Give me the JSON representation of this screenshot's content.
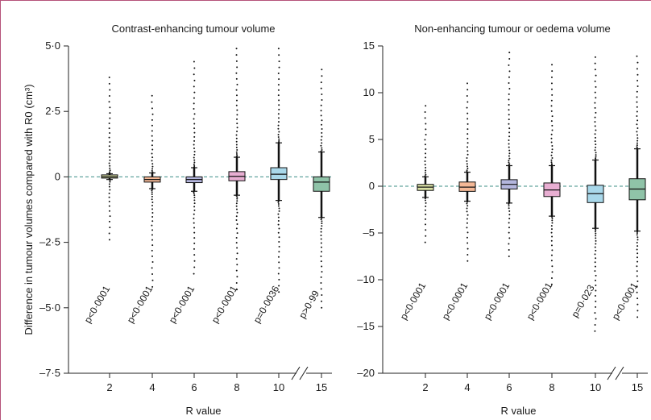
{
  "colors": {
    "frame": "#b5527a",
    "zero_line": "#3d8f86",
    "axis": "#222222",
    "outlier": "#111111"
  },
  "shared": {
    "ylabel": "Difference in tumour volumes compared with R0 (cm³)"
  },
  "chart_data": [
    {
      "type": "box",
      "title": "Contrast-enhancing tumour volume",
      "xlabel": "R value",
      "ylabel": "Difference in tumour volumes compared with R0 (cm³)",
      "ylim": [
        -7.5,
        5.0
      ],
      "yticks": [
        5.0,
        2.5,
        0,
        -2.5,
        -5.0,
        -7.5
      ],
      "ytick_labels": [
        "5·0",
        "2·5",
        "0",
        "–2·5",
        "–5·0",
        "–7·5"
      ],
      "reference_line": 0,
      "axis_break_between": [
        "10",
        "15"
      ],
      "categories": [
        "2",
        "4",
        "6",
        "8",
        "10",
        "15"
      ],
      "boxes": [
        {
          "x": "2",
          "q1": -0.03,
          "median": 0.0,
          "q3": 0.06,
          "whisker_low": -0.1,
          "whisker_high": 0.12,
          "outlier_low": -2.4,
          "outlier_high": 3.8,
          "color": "#d9e0a4",
          "p_value": "p<0·0001"
        },
        {
          "x": "4",
          "q1": -0.2,
          "median": -0.1,
          "q3": 0.0,
          "whisker_low": -0.45,
          "whisker_high": 0.15,
          "outlier_low": -4.2,
          "outlier_high": 3.1,
          "color": "#f4b896",
          "p_value": "p<0·0001"
        },
        {
          "x": "6",
          "q1": -0.22,
          "median": -0.1,
          "q3": 0.0,
          "whisker_low": -0.55,
          "whisker_high": 0.35,
          "outlier_low": -3.7,
          "outlier_high": 4.4,
          "color": "#b4b6dd",
          "p_value": "p<0·0001"
        },
        {
          "x": "8",
          "q1": -0.15,
          "median": 0.02,
          "q3": 0.2,
          "whisker_low": -0.7,
          "whisker_high": 0.75,
          "outlier_low": -4.3,
          "outlier_high": 4.9,
          "color": "#e8aed2",
          "p_value": "p<0·0001"
        },
        {
          "x": "10",
          "q1": -0.1,
          "median": 0.1,
          "q3": 0.35,
          "whisker_low": -0.9,
          "whisker_high": 1.3,
          "outlier_low": -4.4,
          "outlier_high": 4.9,
          "color": "#a9d8ea",
          "p_value": "p=0·0036"
        },
        {
          "x": "15",
          "q1": -0.55,
          "median": -0.2,
          "q3": 0.0,
          "whisker_low": -1.55,
          "whisker_high": 0.95,
          "outlier_low": -5.0,
          "outlier_high": 4.1,
          "color": "#8fc3a8",
          "p_value": "p>0·99"
        }
      ]
    },
    {
      "type": "box",
      "title": "Non-enhancing tumour or oedema volume",
      "xlabel": "R value",
      "ylabel": "",
      "ylim": [
        -20,
        15
      ],
      "yticks": [
        15,
        10,
        5,
        0,
        -5,
        -10,
        -15,
        -20
      ],
      "ytick_labels": [
        "15",
        "10",
        "5",
        "0",
        "–5",
        "–10",
        "–15",
        "–20"
      ],
      "reference_line": 0,
      "axis_break_between": [
        "10",
        "15"
      ],
      "categories": [
        "2",
        "4",
        "6",
        "8",
        "10",
        "15"
      ],
      "boxes": [
        {
          "x": "2",
          "q1": -0.45,
          "median": -0.1,
          "q3": 0.2,
          "whisker_low": -1.2,
          "whisker_high": 1.0,
          "outlier_low": -6.0,
          "outlier_high": 8.6,
          "color": "#d9e0a4",
          "p_value": "p<0·0001"
        },
        {
          "x": "4",
          "q1": -0.55,
          "median": -0.1,
          "q3": 0.45,
          "whisker_low": -1.6,
          "whisker_high": 1.5,
          "outlier_low": -8.0,
          "outlier_high": 11.0,
          "color": "#f4b896",
          "p_value": "p<0·0001"
        },
        {
          "x": "6",
          "q1": -0.3,
          "median": 0.2,
          "q3": 0.7,
          "whisker_low": -1.8,
          "whisker_high": 2.2,
          "outlier_low": -7.5,
          "outlier_high": 14.3,
          "color": "#b4b6dd",
          "p_value": "p<0·0001"
        },
        {
          "x": "8",
          "q1": -1.1,
          "median": -0.4,
          "q3": 0.35,
          "whisker_low": -3.2,
          "whisker_high": 2.2,
          "outlier_low": -10.5,
          "outlier_high": 13.0,
          "color": "#e8aed2",
          "p_value": "p<0·0001"
        },
        {
          "x": "10",
          "q1": -1.75,
          "median": -0.8,
          "q3": 0.1,
          "whisker_low": -4.5,
          "whisker_high": 2.8,
          "outlier_low": -15.5,
          "outlier_high": 13.8,
          "color": "#a9d8ea",
          "p_value": "p=0·023"
        },
        {
          "x": "15",
          "q1": -1.45,
          "median": -0.3,
          "q3": 0.8,
          "whisker_low": -4.8,
          "whisker_high": 4.0,
          "outlier_low": -14.0,
          "outlier_high": 13.9,
          "color": "#8fc3a8",
          "p_value": "p<0·0001"
        }
      ]
    }
  ]
}
